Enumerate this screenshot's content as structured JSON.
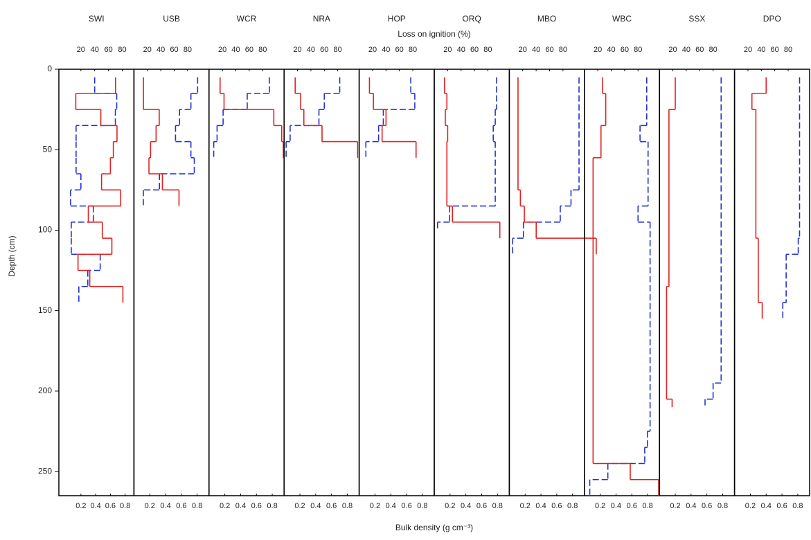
{
  "chart_data": {
    "type": "step-profile",
    "x_label": "Bulk density (g cm⁻³)",
    "x2_label": "Loss on ignition (%)",
    "y_label": "Depth (cm)",
    "ylim": [
      0,
      265
    ],
    "yticks": [
      0,
      50,
      100,
      150,
      200,
      250
    ],
    "y_inverted": true,
    "panels": [
      {
        "title": "SWI",
        "xlim": [
          -0.1,
          0.92
        ],
        "xticks": [
          0.2,
          0.4,
          0.6,
          0.8
        ],
        "x2lim": [
          -12,
          97
        ],
        "x2ticks": [
          20,
          40,
          60,
          80
        ],
        "series": [
          {
            "axis": "x2",
            "color": "#2233cc",
            "dashed": true,
            "depths": [
              5,
              15,
              25,
              35,
              45,
              55,
              65,
              75,
              85,
              95,
              105,
              115,
              125,
              135,
              145
            ],
            "values": [
              40,
              72,
              70,
              13,
              13,
              13,
              20,
              5,
              38,
              6,
              6,
              48,
              30,
              17
            ]
          },
          {
            "axis": "x",
            "color": "#e02020",
            "dashed": false,
            "depths": [
              5,
              15,
              25,
              35,
              45,
              55,
              65,
              75,
              85,
              95,
              105,
              115,
              125,
              135,
              145
            ],
            "values": [
              0.67,
              0.13,
              0.47,
              0.69,
              0.64,
              0.6,
              0.48,
              0.74,
              0.3,
              0.49,
              0.62,
              0.16,
              0.32,
              0.77
            ]
          }
        ]
      },
      {
        "title": "USB",
        "xlim": [
          0,
          0.95
        ],
        "xticks": [
          0.2,
          0.4,
          0.6,
          0.8
        ],
        "x2lim": [
          0,
          112
        ],
        "x2ticks": [
          20,
          40,
          60,
          80
        ],
        "series": [
          {
            "axis": "x2",
            "color": "#2233cc",
            "dashed": true,
            "depths": [
              5,
              15,
              25,
              35,
              45,
              55,
              65,
              75,
              85
            ],
            "values": [
              95,
              85,
              68,
              62,
              85,
              90,
              38,
              14
            ]
          },
          {
            "axis": "x",
            "color": "#e02020",
            "dashed": false,
            "depths": [
              5,
              25,
              35,
              45,
              55,
              65,
              75,
              85
            ],
            "values": [
              0.12,
              0.32,
              0.28,
              0.21,
              0.19,
              0.36,
              0.57
            ]
          }
        ]
      },
      {
        "title": "WCR",
        "xlim": [
          0,
          0.95
        ],
        "xticks": [
          0.2,
          0.4,
          0.6,
          0.8
        ],
        "x2lim": [
          0,
          112
        ],
        "x2ticks": [
          20,
          40,
          60,
          80
        ],
        "series": [
          {
            "axis": "x2",
            "color": "#2233cc",
            "dashed": true,
            "depths": [
              5,
              15,
              25,
              35,
              45,
              55
            ],
            "values": [
              90,
              57,
              21,
              12,
              7
            ]
          },
          {
            "axis": "x",
            "color": "#e02020",
            "dashed": false,
            "depths": [
              5,
              15,
              25,
              35,
              45,
              55
            ],
            "values": [
              0.14,
              0.19,
              0.82,
              0.92,
              0.94
            ]
          }
        ]
      },
      {
        "title": "NRA",
        "xlim": [
          0,
          0.95
        ],
        "xticks": [
          0.2,
          0.4,
          0.6,
          0.8
        ],
        "x2lim": [
          0,
          112
        ],
        "x2ticks": [
          20,
          40,
          60,
          80
        ],
        "series": [
          {
            "axis": "x2",
            "color": "#2233cc",
            "dashed": true,
            "depths": [
              5,
              15,
              25,
              35,
              45,
              55
            ],
            "values": [
              83,
              60,
              52,
              9,
              3
            ]
          },
          {
            "axis": "x",
            "color": "#e02020",
            "dashed": false,
            "depths": [
              5,
              15,
              25,
              35,
              45,
              55
            ],
            "values": [
              0.14,
              0.21,
              0.25,
              0.48,
              0.93
            ]
          }
        ]
      },
      {
        "title": "HOP",
        "xlim": [
          0,
          0.95
        ],
        "xticks": [
          0.2,
          0.4,
          0.6,
          0.8
        ],
        "x2lim": [
          0,
          112
        ],
        "x2ticks": [
          20,
          40,
          60,
          80
        ],
        "series": [
          {
            "axis": "x2",
            "color": "#2233cc",
            "dashed": true,
            "depths": [
              5,
              15,
              25,
              35,
              45,
              55
            ],
            "values": [
              77,
              83,
              36,
              29,
              10
            ]
          },
          {
            "axis": "x",
            "color": "#e02020",
            "dashed": false,
            "depths": [
              5,
              15,
              25,
              35,
              45,
              55
            ],
            "values": [
              0.13,
              0.18,
              0.34,
              0.29,
              0.72
            ]
          }
        ]
      },
      {
        "title": "ORQ",
        "xlim": [
          0,
          0.95
        ],
        "xticks": [
          0.2,
          0.4,
          0.6,
          0.8
        ],
        "x2lim": [
          0,
          112
        ],
        "x2ticks": [
          20,
          40,
          60,
          80
        ],
        "series": [
          {
            "axis": "x2",
            "color": "#2233cc",
            "dashed": true,
            "depths": [
              5,
              25,
              35,
              45,
              85,
              95,
              100
            ],
            "values": [
              93,
              91,
              88,
              91,
              23,
              5
            ]
          },
          {
            "axis": "x",
            "color": "#e02020",
            "dashed": false,
            "depths": [
              5,
              15,
              25,
              35,
              45,
              85,
              95,
              105
            ],
            "values": [
              0.13,
              0.16,
              0.14,
              0.17,
              0.16,
              0.23,
              0.83
            ]
          }
        ]
      },
      {
        "title": "MBO",
        "xlim": [
          0,
          0.95
        ],
        "xticks": [
          0.2,
          0.4,
          0.6,
          0.8
        ],
        "x2lim": [
          0,
          112
        ],
        "x2ticks": [
          20,
          40,
          60,
          80
        ],
        "series": [
          {
            "axis": "x2",
            "color": "#2233cc",
            "dashed": true,
            "depths": [
              5,
              75,
              85,
              95,
              105,
              115
            ],
            "values": [
              104,
              92,
              76,
              21,
              5
            ]
          },
          {
            "axis": "x",
            "color": "#e02020",
            "dashed": false,
            "depths": [
              5,
              75,
              85,
              95,
              105,
              115
            ],
            "values": [
              0.11,
              0.14,
              0.19,
              0.34,
              1.1
            ]
          }
        ]
      },
      {
        "title": "WBC",
        "xlim": [
          0,
          0.95
        ],
        "xticks": [
          0.2,
          0.4,
          0.6,
          0.8
        ],
        "x2lim": [
          0,
          112
        ],
        "x2ticks": [
          20,
          40,
          60,
          80
        ],
        "series": [
          {
            "axis": "x2",
            "color": "#2233cc",
            "dashed": true,
            "depths": [
              5,
              35,
              45,
              85,
              95,
              225,
              235,
              245,
              255,
              265
            ],
            "values": [
              93,
              83,
              95,
              80,
              98,
              94,
              90,
              35,
              8
            ]
          },
          {
            "axis": "x",
            "color": "#e02020",
            "dashed": false,
            "depths": [
              5,
              15,
              35,
              55,
              245,
              255,
              265
            ],
            "values": [
              0.23,
              0.27,
              0.21,
              0.11,
              0.58,
              0.94
            ]
          }
        ]
      },
      {
        "title": "SSX",
        "xlim": [
          0,
          0.95
        ],
        "xticks": [
          0.2,
          0.4,
          0.6,
          0.8
        ],
        "x2lim": [
          0,
          112
        ],
        "x2ticks": [
          20,
          40,
          60,
          80
        ],
        "series": [
          {
            "axis": "x2",
            "color": "#2233cc",
            "dashed": true,
            "depths": [
              5,
              195,
              205,
              210
            ],
            "values": [
              92,
              80,
              68
            ]
          },
          {
            "axis": "x",
            "color": "#e02020",
            "dashed": false,
            "depths": [
              5,
              25,
              135,
              205,
              210
            ],
            "values": [
              0.2,
              0.12,
              0.09,
              0.16
            ]
          }
        ]
      },
      {
        "title": "DPO",
        "xlim": [
          0,
          0.95
        ],
        "xticks": [
          0.2,
          0.4,
          0.6,
          0.8
        ],
        "x2lim": [
          0,
          112
        ],
        "x2ticks": [
          20,
          40,
          60,
          80
        ],
        "series": [
          {
            "axis": "x2",
            "color": "#2233cc",
            "dashed": true,
            "depths": [
              5,
              105,
              115,
              145,
              155
            ],
            "values": [
              97,
              95,
              77,
              72
            ]
          },
          {
            "axis": "x",
            "color": "#e02020",
            "dashed": false,
            "depths": [
              5,
              15,
              25,
              105,
              145,
              155
            ],
            "values": [
              0.4,
              0.22,
              0.27,
              0.3,
              0.35
            ]
          }
        ]
      }
    ]
  }
}
